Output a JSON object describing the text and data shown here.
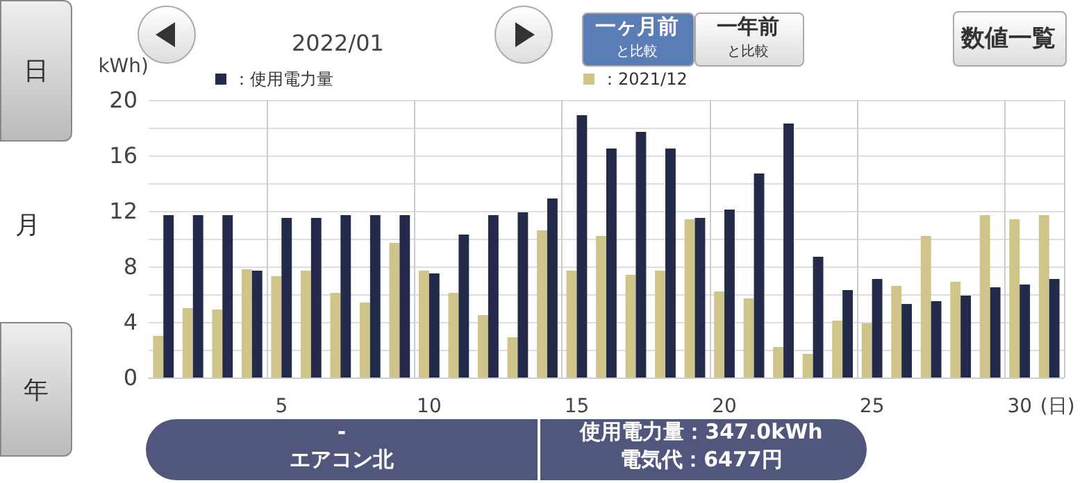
{
  "chart_data": {
    "type": "bar",
    "title": "2022/01",
    "ylabel": "kWh)",
    "xlabel": "(日)",
    "categories": [
      null,
      null,
      null,
      null,
      "5",
      null,
      null,
      null,
      null,
      "10",
      null,
      null,
      null,
      null,
      "15",
      null,
      null,
      null,
      null,
      "20",
      null,
      null,
      null,
      null,
      "25",
      null,
      null,
      null,
      null,
      "30",
      null
    ],
    "series": [
      {
        "name": "：2021/12",
        "color": "#cfc48a",
        "values": [
          3.0,
          5.0,
          4.9,
          7.8,
          7.3,
          7.7,
          6.1,
          5.4,
          9.7,
          7.7,
          6.1,
          4.5,
          2.9,
          10.6,
          7.7,
          10.2,
          7.4,
          7.7,
          11.4,
          6.2,
          5.7,
          2.2,
          1.7,
          4.1,
          3.9,
          6.6,
          10.2,
          6.9,
          11.7,
          11.4,
          11.7
        ]
      },
      {
        "name": "：使用電力量",
        "color": "#232a4a",
        "values": [
          11.7,
          11.7,
          11.7,
          7.7,
          11.5,
          11.5,
          11.7,
          11.7,
          11.7,
          7.5,
          10.3,
          11.7,
          11.9,
          12.9,
          18.9,
          16.5,
          17.7,
          16.5,
          11.5,
          12.1,
          14.7,
          18.3,
          8.7,
          6.3,
          7.1,
          5.3,
          5.5,
          5.9,
          6.5,
          6.7,
          7.1
        ]
      }
    ],
    "ylim": [
      0,
      20
    ],
    "yticks": [
      0,
      {
        "value": 2,
        "label": null
      },
      4,
      {
        "value": 6,
        "label": null
      },
      8,
      {
        "value": 10,
        "label": null
      },
      12,
      {
        "value": 14,
        "label": null
      },
      16,
      {
        "value": 18,
        "label": null
      },
      20
    ],
    "grid": true,
    "legend": "top",
    "annotations": [
      "日",
      "月",
      "年",
      "一ヶ月前",
      "と比較",
      "一年前",
      "と比較",
      "数値一覧",
      "-",
      "エアコン北",
      "使用電力量：347.0kWh",
      "電気代：6477円"
    ]
  }
}
